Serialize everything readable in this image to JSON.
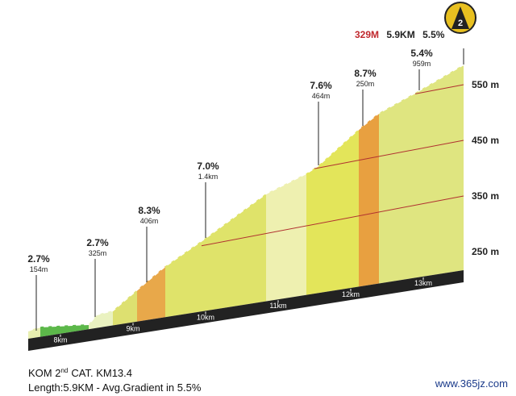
{
  "chart_data": {
    "type": "profile",
    "summary": {
      "gain": "329M",
      "length": "5.9KM",
      "gradient": "5.5%"
    },
    "category": "2",
    "segments": [
      {
        "gradient": "2.7%",
        "length": "154m"
      },
      {
        "gradient": "2.7%",
        "length": "325m"
      },
      {
        "gradient": "8.3%",
        "length": "406m"
      },
      {
        "gradient": "7.0%",
        "length": "1.4km"
      },
      {
        "gradient": "7.6%",
        "length": "464m"
      },
      {
        "gradient": "8.7%",
        "length": "250m"
      },
      {
        "gradient": "5.4%",
        "length": "959m"
      }
    ],
    "xlim": [
      7.5,
      13.5
    ],
    "xticks": [
      {
        "value": 8,
        "label": "8km"
      },
      {
        "value": 9,
        "label": "9km"
      },
      {
        "value": 10,
        "label": "10km"
      },
      {
        "value": 11,
        "label": "11km"
      },
      {
        "value": 12,
        "label": "12km"
      },
      {
        "value": 13,
        "label": "13km"
      }
    ],
    "ylim": [
      200,
      600
    ],
    "yticks": [
      {
        "value": 250,
        "label": "250 m"
      },
      {
        "value": 350,
        "label": "350 m"
      },
      {
        "value": 450,
        "label": "450 m"
      },
      {
        "value": 550,
        "label": "550 m"
      }
    ],
    "footer": {
      "title_prefix": "KOM 2",
      "title_sup": "nd",
      "title_suffix": "CAT.  KM13.4",
      "subtitle": "Length:5.9KM - Avg.Gradient in 5.5%"
    },
    "watermark": "www.365jz.com"
  }
}
